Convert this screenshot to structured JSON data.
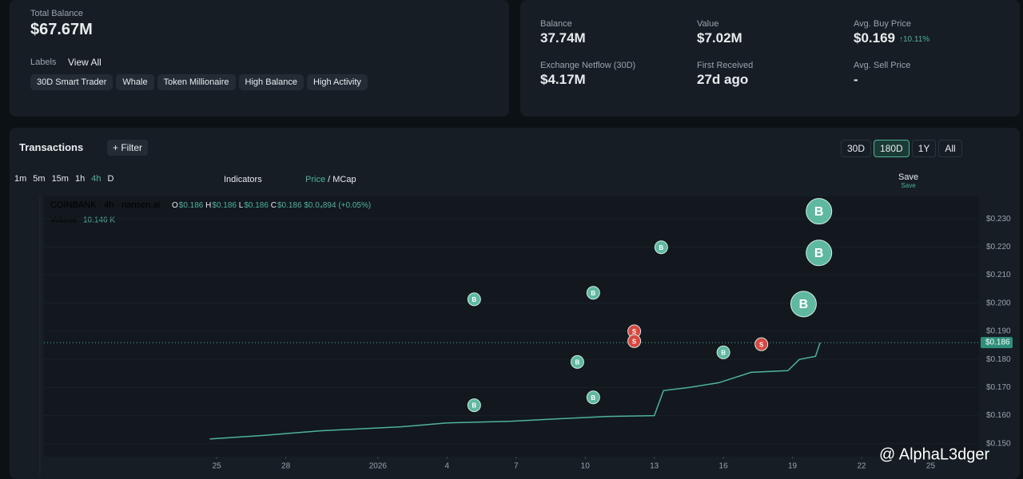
{
  "balance_card": {
    "title": "Total Balance",
    "value": "$67.67M",
    "labels_title": "Labels",
    "view_all": "View All",
    "labels": [
      "30D Smart Trader",
      "Whale",
      "Token Millionaire",
      "High Balance",
      "High Activity"
    ]
  },
  "stats": [
    {
      "label": "Balance",
      "value": "37.74M"
    },
    {
      "label": "Value",
      "value": "$7.02M"
    },
    {
      "label": "Avg. Buy Price",
      "value": "$0.169",
      "change": "10.11%"
    },
    {
      "label": "Exchange Netflow (30D)",
      "value": "$4.17M"
    },
    {
      "label": "First Received",
      "value": "27d ago"
    },
    {
      "label": "Avg. Sell Price",
      "value": "-"
    }
  ],
  "transactions": {
    "title": "Transactions",
    "filter": "Filter",
    "ranges": [
      "30D",
      "180D",
      "1Y",
      "All"
    ],
    "intervals": [
      "1m",
      "5m",
      "15m",
      "1h",
      "4h",
      "D"
    ],
    "indicators": "Indicators",
    "price": "Price",
    "separator": "/",
    "mcap": "MCap",
    "save": "Save",
    "save_sub": "Save"
  },
  "chart_data": {
    "type": "line",
    "symbol": "COINBANK · 4h · nansen.ai",
    "ohlc": [
      {
        "key": "O",
        "value": "$0.186"
      },
      {
        "key": "H",
        "value": "$0.186"
      },
      {
        "key": "L",
        "value": "$0.186"
      },
      {
        "key": "C",
        "value": "$0.186"
      }
    ],
    "change": "$0.0₄894 (+0.05%)",
    "volume_label": "Volume",
    "volume_value": "10.146 K",
    "x": [
      -0.3,
      2.1,
      4.5,
      8.0,
      10.0,
      12.8,
      14.9,
      17.0,
      19.0,
      19.4,
      20.5,
      21.8,
      23.2,
      24.8,
      25.3,
      26.0,
      26.2
    ],
    "values": [
      0.1517,
      0.153,
      0.1546,
      0.156,
      0.1574,
      0.158,
      0.1589,
      0.1597,
      0.16,
      0.1689,
      0.17,
      0.1717,
      0.1754,
      0.176,
      0.18,
      0.1811,
      0.186
    ],
    "color": "#4fb39a",
    "xlim": [
      -7.5,
      33.1
    ],
    "ylim": [
      0.1454,
      0.238
    ],
    "xticks": [
      {
        "value": 0,
        "label": "25"
      },
      {
        "value": 3,
        "label": "28"
      },
      {
        "value": 7,
        "label": "2026"
      },
      {
        "value": 10,
        "label": "4"
      },
      {
        "value": 13,
        "label": "7"
      },
      {
        "value": 16,
        "label": "10"
      },
      {
        "value": 19,
        "label": "13"
      },
      {
        "value": 22,
        "label": "16"
      },
      {
        "value": 25,
        "label": "19"
      },
      {
        "value": 28,
        "label": "22"
      },
      {
        "value": 31,
        "label": "25"
      }
    ],
    "yticks": [
      {
        "value": 0.23,
        "label": "$0.230"
      },
      {
        "value": 0.22,
        "label": "$0.220"
      },
      {
        "value": 0.21,
        "label": "$0.210"
      },
      {
        "value": 0.2,
        "label": "$0.200"
      },
      {
        "value": 0.19,
        "label": "$0.190"
      },
      {
        "value": 0.18,
        "label": "$0.180"
      },
      {
        "value": 0.17,
        "label": "$0.170"
      },
      {
        "value": 0.16,
        "label": "$0.160"
      },
      {
        "value": 0.15,
        "label": "$0.150"
      }
    ],
    "current_price": {
      "value": 0.186,
      "label": "$0.186"
    },
    "trades": [
      {
        "day": 26.15,
        "price": 0.2327,
        "side": "B"
      },
      {
        "day": 26.15,
        "price": 0.2179,
        "side": "B"
      },
      {
        "day": 25.48,
        "price": 0.1997,
        "side": "B"
      },
      {
        "day": 15.66,
        "price": 0.1791,
        "side": "B"
      },
      {
        "day": 18.13,
        "price": 0.19,
        "side": "S"
      },
      {
        "day": 18.13,
        "price": 0.1865,
        "side": "S"
      },
      {
        "day": 23.65,
        "price": 0.1854,
        "side": "S"
      },
      {
        "day": 11.18,
        "price": 0.2014,
        "side": "B"
      },
      {
        "day": 11.18,
        "price": 0.1637,
        "side": "B"
      },
      {
        "day": 16.35,
        "price": 0.2037,
        "side": "B"
      },
      {
        "day": 16.35,
        "price": 0.1665,
        "side": "B"
      },
      {
        "day": 19.3,
        "price": 0.2199,
        "side": "B"
      },
      {
        "day": 22.0,
        "price": 0.1825,
        "side": "B"
      }
    ],
    "watermark": "@ AlphaL3dger"
  }
}
